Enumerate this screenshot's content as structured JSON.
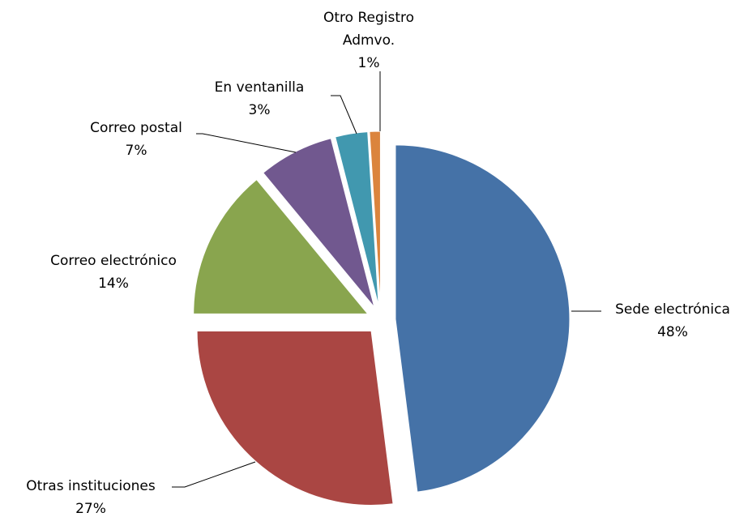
{
  "chart_data": {
    "type": "pie",
    "categories": [
      "Sede electrónica",
      "Otras instituciones",
      "Correo electrónico",
      "Correo postal",
      "En ventanilla",
      "Otro Registro Admvo."
    ],
    "values": [
      48,
      27,
      14,
      7,
      3,
      1
    ],
    "value_labels": [
      "48%",
      "27%",
      "14%",
      "7%",
      "3%",
      "1%"
    ],
    "colors": [
      "#4572a7",
      "#aa4643",
      "#89a54e",
      "#71588f",
      "#4198af",
      "#db843d"
    ]
  }
}
